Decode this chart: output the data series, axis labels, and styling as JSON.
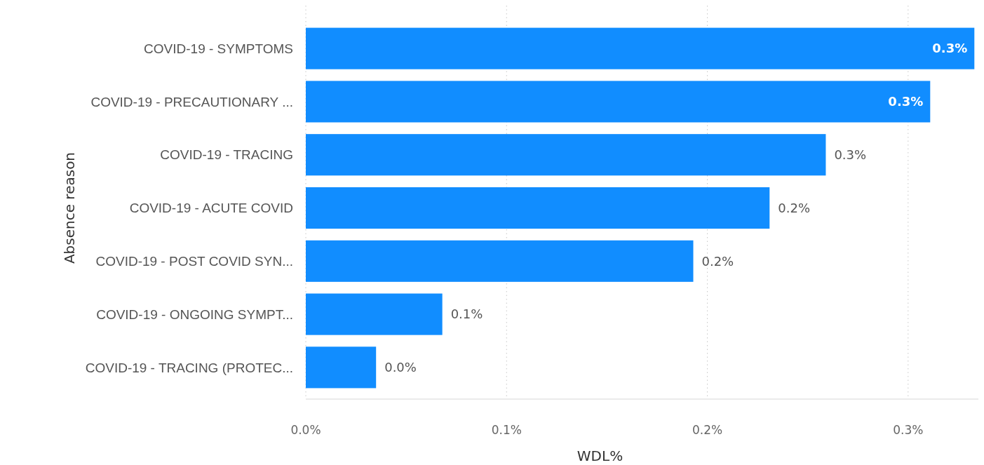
{
  "chart_data": {
    "type": "bar",
    "orientation": "horizontal",
    "xlabel": "WDL%",
    "ylabel": "Absence reason",
    "categories": [
      "COVID-19 - SYMPTOMS",
      "COVID-19 - PRECAUTIONARY ...",
      "COVID-19 - TRACING",
      "COVID-19 - ACUTE COVID",
      "COVID-19 - POST COVID SYN...",
      "COVID-19 - ONGOING SYMPT...",
      "COVID-19 - TRACING (PROTEC..."
    ],
    "values": [
      0.333,
      0.311,
      0.259,
      0.231,
      0.193,
      0.068,
      0.035
    ],
    "value_labels": [
      "0.3%",
      "0.3%",
      "0.3%",
      "0.2%",
      "0.2%",
      "0.1%",
      "0.0%"
    ],
    "color": "#118dff",
    "xlim": [
      0,
      0.335
    ],
    "xticks": [
      {
        "value": 0,
        "label": "0.0%"
      },
      {
        "value": 0.1,
        "label": "0.1%"
      },
      {
        "value": 0.2,
        "label": "0.2%"
      },
      {
        "value": 0.3,
        "label": "0.3%"
      }
    ],
    "grid": "x"
  }
}
